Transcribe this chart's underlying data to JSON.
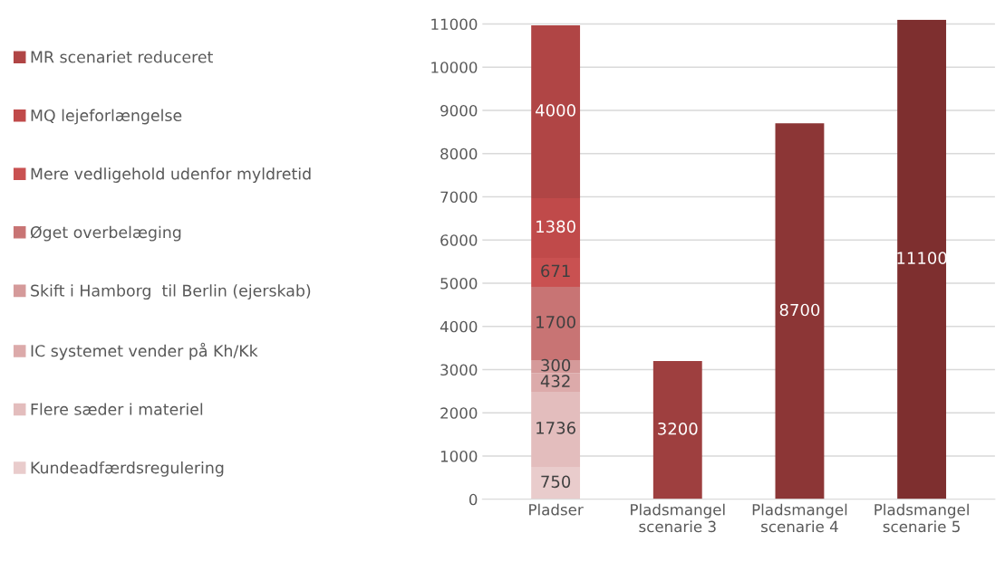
{
  "chart_data": {
    "type": "bar",
    "stacked": true,
    "categories": [
      "Pladser",
      "Pladsmangel\nscenarie 3",
      "Pladsmangel\nscenarie 4",
      "Pladsmangel\nscenarie 5"
    ],
    "series": [
      {
        "name": "Kundeadfærdsregulering",
        "color": "#e9cccc",
        "values": [
          750,
          null,
          null,
          null
        ]
      },
      {
        "name": "Flere sæder i materiel",
        "color": "#e3bdbd",
        "values": [
          1736,
          null,
          null,
          null
        ]
      },
      {
        "name": "IC systemet vender på Kh/Kk",
        "color": "#dcaaaa",
        "values": [
          432,
          null,
          null,
          null
        ]
      },
      {
        "name": "Skift i Hamborg  til Berlin (ejerskab)",
        "color": "#d59a9a",
        "values": [
          300,
          null,
          null,
          null
        ]
      },
      {
        "name": "Øget overbelæging",
        "color": "#c87474",
        "values": [
          1700,
          null,
          null,
          null
        ]
      },
      {
        "name": "Mere vedligehold udenfor myldretid",
        "color": "#c95151",
        "values": [
          671,
          null,
          null,
          null
        ]
      },
      {
        "name": "MQ lejeforlængelse",
        "color": "#c04a4a",
        "values": [
          1380,
          null,
          null,
          null
        ]
      },
      {
        "name": "MR scenariet reduceret",
        "color": "#b04545",
        "values": [
          4000,
          null,
          null,
          null
        ]
      },
      {
        "colors": [
          "#9e3f3f",
          "#9e3f3f",
          "#8c3636",
          "#7e2f2f"
        ],
        "values": [
          null,
          3200,
          8700,
          11100
        ]
      }
    ],
    "ylim": [
      0,
      11100
    ],
    "yticks": [
      0,
      1000,
      2000,
      3000,
      4000,
      5000,
      6000,
      7000,
      8000,
      9000,
      10000,
      11000
    ],
    "grid": "y",
    "legend": "left",
    "data_labels": true
  }
}
